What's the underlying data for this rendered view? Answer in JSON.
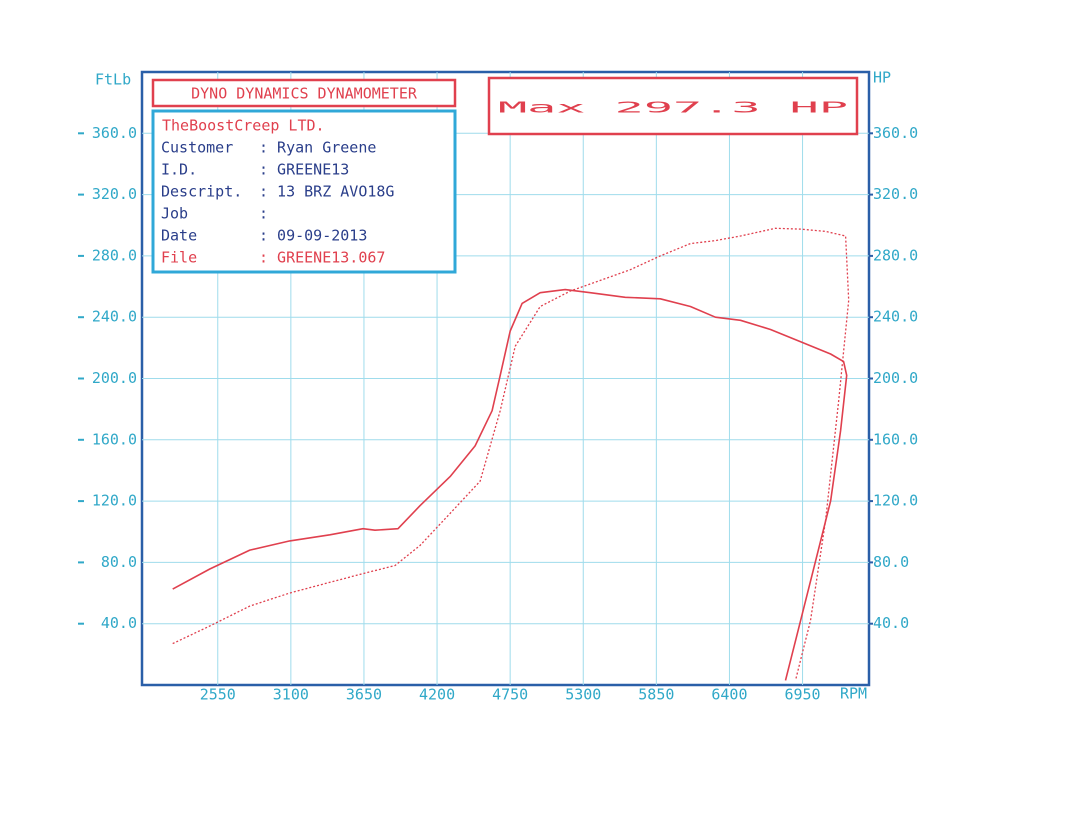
{
  "header": {
    "title": "DYNO DYNAMICS DYNAMOMETER",
    "max": "Max 297.3 HP"
  },
  "info": {
    "company": "TheBoostCreep LTD.",
    "rows": [
      {
        "label": "Customer",
        "value": ": Ryan Greene"
      },
      {
        "label": "I.D.",
        "value": ": GREENE13"
      },
      {
        "label": "Descript.",
        "value": ": 13 BRZ AVO18G"
      },
      {
        "label": "Job",
        "value": ":"
      },
      {
        "label": "Date",
        "value": ": 09-09-2013"
      },
      {
        "label": "File",
        "value": ": GREENE13.067"
      }
    ]
  },
  "chart_data": {
    "type": "line",
    "y_label": "FtLb",
    "y2_label": "HP",
    "x_label": "RPM",
    "xlim": [
      1980,
      7450
    ],
    "xticks": [
      2550,
      3100,
      3650,
      4200,
      4750,
      5300,
      5850,
      6400,
      6950
    ],
    "ylim": [
      0,
      400
    ],
    "yticks": [
      {
        "value": 40,
        "label": "40.0"
      },
      {
        "value": 80,
        "label": "80.0"
      },
      {
        "value": 120,
        "label": "120.0"
      },
      {
        "value": 160,
        "label": "160.0"
      },
      {
        "value": 200,
        "label": "200.0"
      },
      {
        "value": 240,
        "label": "240.0"
      },
      {
        "value": 280,
        "label": "280.0"
      },
      {
        "value": 320,
        "label": "320.0"
      },
      {
        "value": 360,
        "label": "360.0"
      }
    ],
    "y2lim": [
      0,
      400
    ],
    "y2ticks": [
      {
        "value": 40,
        "label": "40.0"
      },
      {
        "value": 80,
        "label": "80.0"
      },
      {
        "value": 120,
        "label": "120.0"
      },
      {
        "value": 160,
        "label": "160.0"
      },
      {
        "value": 200,
        "label": "200.0"
      },
      {
        "value": 240,
        "label": "240.0"
      },
      {
        "value": 280,
        "label": "280.0"
      },
      {
        "value": 320,
        "label": "320.0"
      },
      {
        "value": 360,
        "label": "360.0"
      }
    ],
    "grid": true,
    "series": [
      {
        "color": "#e0404e",
        "style": "solid",
        "x": [
          2211,
          2490,
          2791,
          3092,
          3394,
          3643,
          3733,
          3906,
          4072,
          4298,
          4486,
          4614,
          4675,
          4750,
          4840,
          4976,
          5164,
          5353,
          5616,
          5880,
          6106,
          6294,
          6483,
          6709,
          6935,
          7161,
          7259,
          7282,
          7236,
          7161,
          7048,
          6935,
          6822
        ],
        "values": [
          62.6,
          75.7,
          88,
          94,
          98,
          102,
          101,
          102,
          117,
          136,
          156,
          179,
          202,
          231,
          249,
          256,
          258,
          256,
          253,
          252,
          247,
          240,
          238,
          232,
          224,
          216,
          211,
          202,
          166,
          120,
          81,
          42,
          3
        ]
      },
      {
        "color": "#e0404e",
        "style": "dotted",
        "axis": "y2",
        "x": [
          2211,
          2490,
          2791,
          3092,
          3394,
          3658,
          3884,
          4072,
          4298,
          4524,
          4675,
          4788,
          4976,
          5202,
          5428,
          5654,
          5880,
          6106,
          6294,
          6483,
          6746,
          6935,
          7123,
          7274,
          7297,
          7221,
          7123,
          7010,
          6897
        ],
        "values": [
          27,
          38.5,
          51.5,
          60,
          67,
          73,
          78,
          91,
          112,
          133,
          179,
          221,
          247,
          257,
          264,
          271,
          280,
          288,
          290,
          293,
          298,
          297.5,
          296,
          293,
          251,
          185,
          107,
          42,
          3
        ]
      }
    ]
  }
}
